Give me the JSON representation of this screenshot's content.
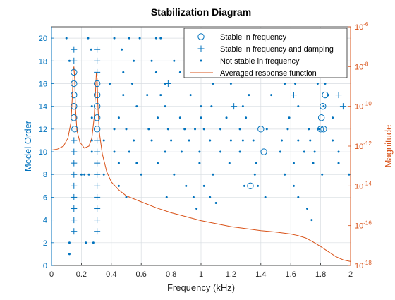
{
  "colors": {
    "left_axis": "#0072BD",
    "right_axis": "#D95319",
    "grid": "#d8dde2",
    "frame": "#262626",
    "legend_border": "#262626"
  },
  "chart_data": {
    "type": "scatter",
    "title": "Stabilization Diagram",
    "xlabel": "Frequency (kHz)",
    "ylabel_left": "Model Order",
    "ylabel_right": "Magnitude",
    "xlim": [
      0,
      2
    ],
    "ylim_left": [
      0,
      21
    ],
    "ylim_right_log10": [
      -18,
      -6
    ],
    "grid": true,
    "legend_position": "top-right",
    "x_ticks": [
      "0",
      "0.2",
      "0.4",
      "0.6",
      "0.8",
      "1",
      "1.2",
      "1.4",
      "1.6",
      "1.8",
      "2"
    ],
    "y_ticks_left": [
      "0",
      "2",
      "4",
      "6",
      "8",
      "10",
      "12",
      "14",
      "16",
      "18",
      "20"
    ],
    "y_ticks_right": [
      {
        "base": "10",
        "exp": "-6",
        "value": -6
      },
      {
        "base": "10",
        "exp": "-8",
        "value": -8
      },
      {
        "base": "10",
        "exp": "-10",
        "value": -10
      },
      {
        "base": "10",
        "exp": "-12",
        "value": -12
      },
      {
        "base": "10",
        "exp": "-14",
        "value": -14
      },
      {
        "base": "10",
        "exp": "-16",
        "value": -16
      },
      {
        "base": "10",
        "exp": "-18",
        "value": -18
      }
    ],
    "legend": [
      {
        "label": "Stable in frequency",
        "marker": "circle"
      },
      {
        "label": "Stable in frequency and damping",
        "marker": "plus"
      },
      {
        "label": "Not stable in frequency",
        "marker": "dot"
      },
      {
        "label": "Averaged response function",
        "marker": "line"
      }
    ],
    "series": [
      {
        "marker": "circle",
        "points": [
          [
            0.15,
            17
          ],
          [
            0.15,
            16
          ],
          [
            0.15,
            15
          ],
          [
            0.15,
            14
          ],
          [
            0.15,
            13
          ],
          [
            0.155,
            12
          ],
          [
            0.305,
            16
          ],
          [
            0.305,
            15
          ],
          [
            0.305,
            14
          ],
          [
            0.305,
            13
          ],
          [
            0.305,
            12
          ],
          [
            1.4,
            12
          ],
          [
            1.42,
            10
          ],
          [
            1.33,
            7
          ],
          [
            1.83,
            15
          ],
          [
            1.815,
            14
          ],
          [
            1.805,
            13
          ],
          [
            1.8,
            12
          ],
          [
            1.82,
            12
          ]
        ]
      },
      {
        "marker": "plus",
        "points": [
          [
            0.15,
            19
          ],
          [
            0.15,
            18
          ],
          [
            0.15,
            11
          ],
          [
            0.15,
            10
          ],
          [
            0.15,
            9
          ],
          [
            0.15,
            8
          ],
          [
            0.15,
            7
          ],
          [
            0.15,
            6
          ],
          [
            0.15,
            5
          ],
          [
            0.15,
            4
          ],
          [
            0.15,
            3
          ],
          [
            0.305,
            19
          ],
          [
            0.305,
            18
          ],
          [
            0.305,
            17
          ],
          [
            0.305,
            11
          ],
          [
            0.305,
            10
          ],
          [
            0.305,
            9
          ],
          [
            0.305,
            8
          ],
          [
            0.305,
            7
          ],
          [
            0.305,
            6
          ],
          [
            0.305,
            5
          ],
          [
            0.305,
            4
          ],
          [
            0.305,
            3
          ],
          [
            0.78,
            16
          ],
          [
            1.22,
            14
          ],
          [
            1.62,
            15
          ],
          [
            1.92,
            15
          ],
          [
            1.95,
            14
          ]
        ]
      },
      {
        "marker": "dot",
        "points": [
          [
            0.1,
            20
          ],
          [
            0.245,
            20
          ],
          [
            0.265,
            19
          ],
          [
            0.42,
            20
          ],
          [
            0.52,
            20
          ],
          [
            0.59,
            20
          ],
          [
            0.7,
            20
          ],
          [
            0.73,
            20
          ],
          [
            0.92,
            20
          ],
          [
            1.02,
            20
          ],
          [
            1.04,
            20
          ],
          [
            1.32,
            20
          ],
          [
            0.47,
            19
          ],
          [
            1.44,
            19
          ],
          [
            0.12,
            18
          ],
          [
            0.55,
            18
          ],
          [
            0.67,
            18
          ],
          [
            0.82,
            18
          ],
          [
            1.08,
            18
          ],
          [
            1.27,
            18
          ],
          [
            1.35,
            18
          ],
          [
            1.73,
            18
          ],
          [
            0.48,
            17
          ],
          [
            0.7,
            17
          ],
          [
            0.86,
            17
          ],
          [
            0.97,
            17
          ],
          [
            1.16,
            17
          ],
          [
            1.25,
            17
          ],
          [
            1.38,
            17
          ],
          [
            1.52,
            17
          ],
          [
            1.88,
            17
          ],
          [
            0.39,
            16
          ],
          [
            0.54,
            16
          ],
          [
            0.76,
            16
          ],
          [
            1.08,
            16
          ],
          [
            1.2,
            16
          ],
          [
            1.56,
            16
          ],
          [
            1.63,
            16
          ],
          [
            1.78,
            16
          ],
          [
            1.83,
            16
          ],
          [
            0.48,
            15
          ],
          [
            0.64,
            15
          ],
          [
            0.73,
            15
          ],
          [
            0.93,
            15
          ],
          [
            1.32,
            15
          ],
          [
            1.47,
            15
          ],
          [
            1.85,
            15
          ],
          [
            0.27,
            14
          ],
          [
            0.57,
            14
          ],
          [
            0.76,
            14
          ],
          [
            1.0,
            14
          ],
          [
            1.07,
            14
          ],
          [
            1.28,
            14
          ],
          [
            1.65,
            14
          ],
          [
            1.82,
            14
          ],
          [
            0.27,
            13
          ],
          [
            0.45,
            13
          ],
          [
            0.71,
            13
          ],
          [
            0.86,
            13
          ],
          [
            1.0,
            13
          ],
          [
            1.17,
            13
          ],
          [
            1.3,
            13
          ],
          [
            1.59,
            13
          ],
          [
            1.88,
            13
          ],
          [
            0.42,
            12
          ],
          [
            0.5,
            12
          ],
          [
            0.65,
            12
          ],
          [
            0.78,
            12
          ],
          [
            0.89,
            12
          ],
          [
            0.96,
            12
          ],
          [
            1.02,
            12
          ],
          [
            1.13,
            12
          ],
          [
            1.26,
            12
          ],
          [
            1.44,
            12
          ],
          [
            1.58,
            12
          ],
          [
            1.72,
            12
          ],
          [
            1.79,
            12
          ],
          [
            0.27,
            11
          ],
          [
            0.35,
            11
          ],
          [
            0.55,
            11
          ],
          [
            0.67,
            11
          ],
          [
            0.8,
            11
          ],
          [
            0.92,
            11
          ],
          [
            1.06,
            11
          ],
          [
            1.2,
            11
          ],
          [
            1.28,
            11
          ],
          [
            1.35,
            11
          ],
          [
            1.54,
            11
          ],
          [
            1.65,
            11
          ],
          [
            1.73,
            11
          ],
          [
            1.88,
            11
          ],
          [
            0.27,
            10
          ],
          [
            0.42,
            10
          ],
          [
            0.52,
            10
          ],
          [
            0.76,
            10
          ],
          [
            0.87,
            10
          ],
          [
            0.99,
            10
          ],
          [
            1.13,
            10
          ],
          [
            1.26,
            10
          ],
          [
            1.53,
            10
          ],
          [
            1.69,
            10
          ],
          [
            1.76,
            10
          ],
          [
            1.92,
            10
          ],
          [
            0.45,
            9
          ],
          [
            0.57,
            9
          ],
          [
            0.71,
            9
          ],
          [
            0.99,
            9
          ],
          [
            1.19,
            9
          ],
          [
            1.37,
            9
          ],
          [
            1.62,
            9
          ],
          [
            1.75,
            9
          ],
          [
            1.92,
            9
          ],
          [
            0.25,
            8
          ],
          [
            0.2,
            8
          ],
          [
            0.35,
            8
          ],
          [
            0.6,
            8
          ],
          [
            0.82,
            8
          ],
          [
            1.08,
            8
          ],
          [
            1.36,
            8
          ],
          [
            1.56,
            8
          ],
          [
            1.81,
            8
          ],
          [
            1.99,
            8
          ],
          [
            0.45,
            7
          ],
          [
            0.9,
            7
          ],
          [
            1.02,
            7
          ],
          [
            1.29,
            7
          ],
          [
            1.38,
            7
          ],
          [
            1.62,
            7
          ],
          [
            0.5,
            6
          ],
          [
            0.77,
            6
          ],
          [
            0.95,
            6
          ],
          [
            1.06,
            6
          ],
          [
            1.43,
            6
          ],
          [
            1.65,
            6
          ],
          [
            1.1,
            5.5
          ],
          [
            0.97,
            5
          ],
          [
            1.71,
            5
          ],
          [
            1.74,
            4
          ],
          [
            0.23,
            2
          ],
          [
            0.12,
            1
          ],
          [
            0.12,
            2
          ],
          [
            0.28,
            2
          ],
          [
            0.22,
            8
          ]
        ]
      }
    ],
    "response_curve": {
      "x": [
        0,
        0.04,
        0.08,
        0.11,
        0.13,
        0.14,
        0.145,
        0.15,
        0.155,
        0.16,
        0.17,
        0.19,
        0.22,
        0.25,
        0.27,
        0.285,
        0.295,
        0.3,
        0.305,
        0.31,
        0.32,
        0.34,
        0.37,
        0.4,
        0.45,
        0.5,
        0.6,
        0.7,
        0.8,
        0.9,
        1.0,
        1.1,
        1.2,
        1.3,
        1.4,
        1.5,
        1.6,
        1.65,
        1.7,
        1.75,
        1.8,
        1.85,
        1.9,
        1.95,
        2.0
      ],
      "log10_magnitude": [
        -12.2,
        -12.15,
        -12.0,
        -11.6,
        -10.8,
        -9.4,
        -8.2,
        -8.0,
        -8.6,
        -10.0,
        -11.2,
        -11.8,
        -12.1,
        -12.0,
        -11.6,
        -10.6,
        -9.2,
        -8.3,
        -8.6,
        -9.9,
        -11.3,
        -12.4,
        -13.3,
        -13.8,
        -14.2,
        -14.5,
        -14.8,
        -15.1,
        -15.35,
        -15.55,
        -15.75,
        -15.9,
        -16.05,
        -16.15,
        -16.25,
        -16.32,
        -16.42,
        -16.5,
        -16.62,
        -16.82,
        -17.05,
        -17.3,
        -17.55,
        -17.72,
        -17.8
      ]
    }
  }
}
